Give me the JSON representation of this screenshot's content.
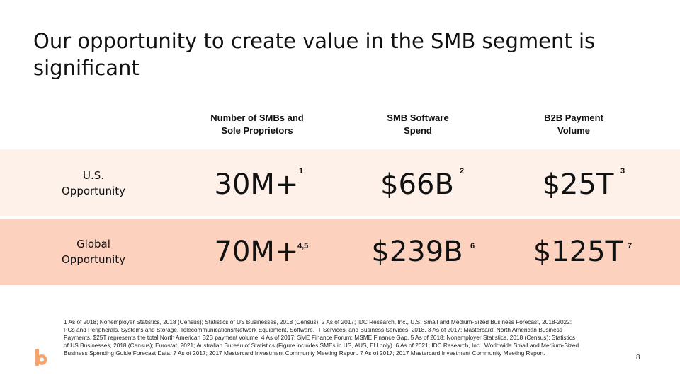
{
  "slide": {
    "title": "Our opportunity to create value in the SMB segment is significant",
    "page_number": "8"
  },
  "columns": [
    {
      "label": "Number of SMBs and\nSole Proprietors"
    },
    {
      "label": "SMB Software\nSpend"
    },
    {
      "label": "B2B Payment\nVolume"
    }
  ],
  "rows": [
    {
      "label": "U.S.\nOpportunity",
      "cells": [
        {
          "value": "30M+",
          "note": "1"
        },
        {
          "value": "$66B",
          "note": "2"
        },
        {
          "value": "$25T",
          "note": "3"
        }
      ]
    },
    {
      "label": "Global\nOpportunity",
      "cells": [
        {
          "value": "70M+",
          "note": "4,5"
        },
        {
          "value": "$239B",
          "note": "6"
        },
        {
          "value": "$125T",
          "note": "7"
        }
      ]
    }
  ],
  "footnotes": "1 As of 2018; Nonemployer Statistics, 2018 (Census); Statistics of US Businesses, 2018 (Census). 2 As of 2017; IDC Research, Inc., U.S. Small and Medium-Sized Business Forecast, 2018-2022: PCs and Peripherals, Systems and Storage, Telecommunications/Network Equipment, Software, IT Services, and Business Services, 2018. 3 As of 2017; Mastercard; North American Business Payments. $25T represents the total North American B2B payment volume. 4 As of 2017; SME Finance Forum: MSME Finance Gap. 5 As of 2018; Nonemployer Statistics, 2018 (Census); Statistics of US Businesses, 2018 (Census); Eurostat, 2021; Australian Bureau of Statistics (Figure includes SMEs in US, AUS, EU only). 6 As of 2021; IDC Research, Inc., Worldwide Small and Medium-Sized Business Spending Guide Forecast Data. 7 As of 2017; 2017 Mastercard Investment Community Meeting Report. 7 As of 2017; 2017 Mastercard Investment Community Meeting Report.",
  "colors": {
    "us_band": "#fdf1ea",
    "global_band": "#fcd2bf",
    "logo": "#f5a46f"
  },
  "logo_icon": "bill-logo-icon"
}
